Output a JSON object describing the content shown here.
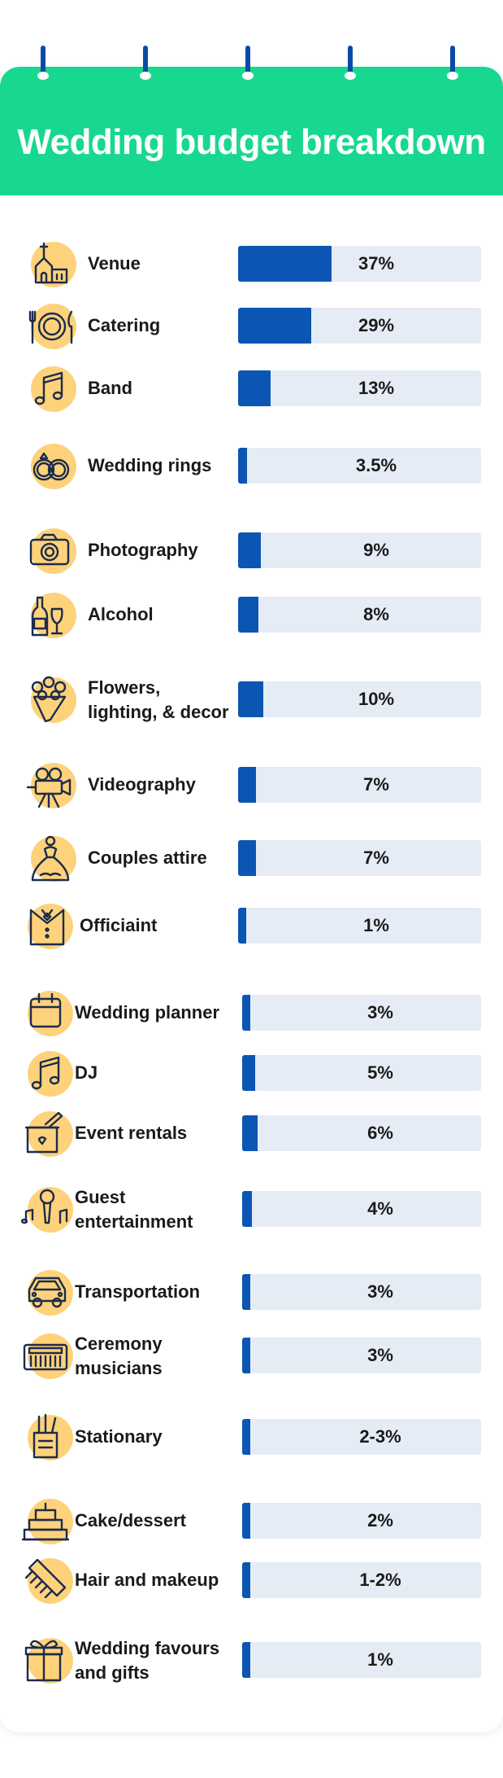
{
  "chart_data": {
    "type": "bar",
    "title": "Wedding budget breakdown",
    "categories": [
      "Venue",
      "Catering",
      "Band",
      "Wedding rings",
      "Photography",
      "Alcohol",
      "Flowers, lighting, & decor",
      "Videography",
      "Couples attire",
      "Officiaint",
      "Wedding planner",
      "DJ",
      "Event rentals",
      "Guest entertainment",
      "Transportation",
      "Ceremony musicians",
      "Stationary",
      "Cake/dessert",
      "Hair and makeup",
      "Wedding favours and gifts"
    ],
    "values": [
      37,
      29,
      13,
      3.5,
      9,
      8,
      10,
      7,
      7,
      1,
      3,
      5,
      6,
      4,
      3,
      3,
      2.5,
      2,
      1.5,
      1
    ],
    "value_labels": [
      "37%",
      "29%",
      "13%",
      "3.5%",
      "9%",
      "8%",
      "10%",
      "7%",
      "7%",
      "1%",
      "3%",
      "5%",
      "6%",
      "4%",
      "3%",
      "3%",
      "2-3%",
      "2%",
      "1-2%",
      "1%"
    ],
    "labels_multiline": [
      [
        "Venue"
      ],
      [
        "Catering"
      ],
      [
        "Band"
      ],
      [
        "Wedding rings"
      ],
      [
        "Photography"
      ],
      [
        "Alcohol"
      ],
      [
        "Flowers,",
        "lighting, & decor"
      ],
      [
        "Videography"
      ],
      [
        "Couples attire"
      ],
      [
        "Officiaint"
      ],
      [
        "Wedding planner"
      ],
      [
        "DJ"
      ],
      [
        "Event rentals"
      ],
      [
        "Guest",
        "entertainment"
      ],
      [
        "Transportation"
      ],
      [
        "Ceremony",
        "musicians"
      ],
      [
        "Stationary"
      ],
      [
        "Cake/dessert"
      ],
      [
        "Hair and makeup"
      ],
      [
        "Wedding favours",
        "and gifts"
      ]
    ],
    "icons": [
      "church-icon",
      "plate-cutlery-icon",
      "music-note-icon",
      "rings-icon",
      "camera-icon",
      "wine-bottle-icon",
      "bouquet-icon",
      "video-camera-icon",
      "dress-icon",
      "tuxedo-icon",
      "calendar-icon",
      "music-note-icon",
      "gift-box-icon",
      "microphone-icon",
      "car-icon",
      "keyboard-icon",
      "pen-holder-icon",
      "cake-icon",
      "comb-icon",
      "gift-icon"
    ],
    "xlim": [
      0,
      100
    ],
    "grid": false,
    "legend": "none",
    "bar_color": "#0b56b3",
    "track_color": "#e6ecf6",
    "header_color": "#18d890",
    "icon_circle_color": "#fdd27a"
  }
}
